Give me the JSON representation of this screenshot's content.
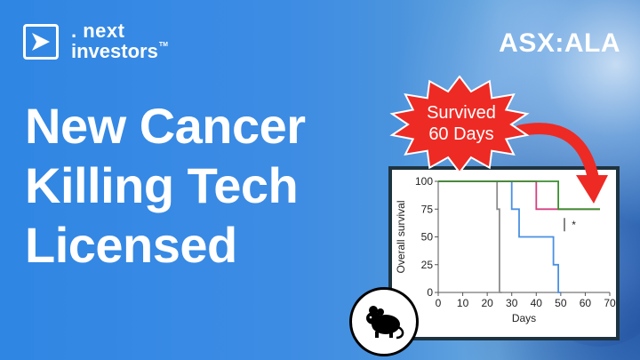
{
  "logo": {
    "line1": ". next",
    "line2": "investors",
    "tm": "TM"
  },
  "ticker": "ASX:ALA",
  "headline": [
    "New Cancer",
    "Killing Tech",
    "Licensed"
  ],
  "callout": {
    "line1": "Survived",
    "line2": "60 Days"
  },
  "colors": {
    "background": "#3d8ce4",
    "burst": "#ee2a24",
    "arrow": "#ee2a24",
    "card_border": "#1e3340"
  },
  "icons": {
    "logo": "play-arrow-icon",
    "badge": "mouse-icon"
  },
  "chart_data": {
    "type": "line",
    "xlabel": "Days",
    "ylabel": "Overall survival",
    "xlim": [
      0,
      70
    ],
    "ylim": [
      0,
      100
    ],
    "x_ticks": [
      0,
      10,
      20,
      30,
      40,
      50,
      60,
      70
    ],
    "y_ticks": [
      0,
      25,
      50,
      75,
      100
    ],
    "annotation": "*",
    "series": [
      {
        "color": "#8c8c8c",
        "steps": [
          [
            0,
            100
          ],
          [
            24,
            100
          ],
          [
            24,
            75
          ],
          [
            25,
            75
          ],
          [
            25,
            50
          ],
          [
            25,
            25
          ],
          [
            25,
            0
          ],
          [
            26,
            0
          ]
        ]
      },
      {
        "color": "#4a90e2",
        "steps": [
          [
            0,
            100
          ],
          [
            30,
            100
          ],
          [
            30,
            75
          ],
          [
            33,
            75
          ],
          [
            33,
            50
          ],
          [
            47,
            50
          ],
          [
            47,
            25
          ],
          [
            49,
            25
          ],
          [
            49,
            0
          ],
          [
            50,
            0
          ]
        ]
      },
      {
        "color": "#d4417f",
        "steps": [
          [
            0,
            100
          ],
          [
            40,
            100
          ],
          [
            40,
            75
          ],
          [
            66,
            75
          ]
        ]
      },
      {
        "color": "#3a8f2f",
        "steps": [
          [
            0,
            100
          ],
          [
            49,
            100
          ],
          [
            49,
            75
          ],
          [
            66,
            75
          ]
        ]
      }
    ]
  }
}
